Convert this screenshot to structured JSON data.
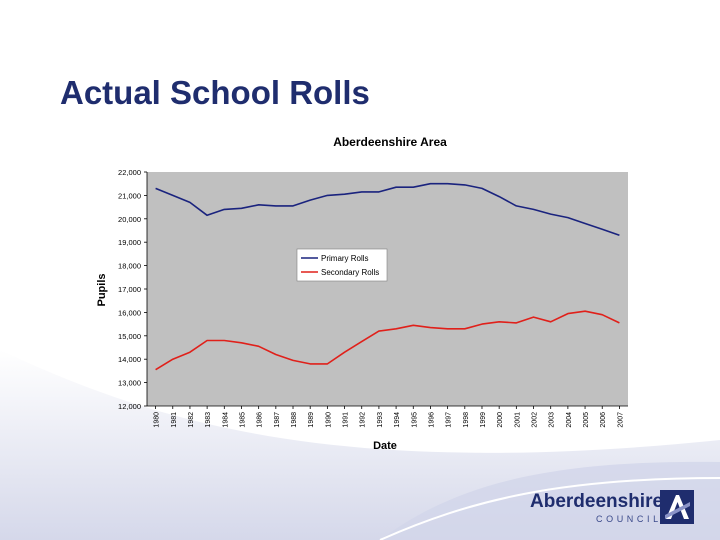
{
  "slide": {
    "title": "Actual School Rolls"
  },
  "logo": {
    "name": "Aberdeenshire",
    "subtitle": "COUNCIL"
  },
  "colors": {
    "title": "#1f2d6e",
    "plot_bg": "#c0c0c0",
    "primary": "#1a237e",
    "secondary": "#e0201a"
  },
  "chart_data": {
    "type": "line",
    "title": "Aberdeenshire Area",
    "xlabel": "Date",
    "ylabel": "Pupils",
    "ylim": [
      12000,
      22000
    ],
    "yticks": [
      12000,
      13000,
      14000,
      15000,
      16000,
      17000,
      18000,
      19000,
      20000,
      21000,
      22000
    ],
    "ytick_labels": [
      "12,000",
      "13,000",
      "14,000",
      "15,000",
      "16,000",
      "17,000",
      "18,000",
      "19,000",
      "20,000",
      "21,000",
      "22,000"
    ],
    "grid": false,
    "legend_position": "center",
    "x": [
      "1980",
      "1981",
      "1982",
      "1983",
      "1984",
      "1985",
      "1986",
      "1987",
      "1988",
      "1989",
      "1990",
      "1991",
      "1992",
      "1993",
      "1994",
      "1995",
      "1996",
      "1997",
      "1998",
      "1999",
      "2000",
      "2001",
      "2002",
      "2003",
      "2004",
      "2005",
      "2006",
      "2007"
    ],
    "series": [
      {
        "name": "Primary Rolls",
        "color": "#1a237e",
        "values": [
          21300,
          21000,
          20700,
          20150,
          20400,
          20450,
          20600,
          20550,
          20550,
          20800,
          21000,
          21050,
          21150,
          21150,
          21350,
          21350,
          21500,
          21500,
          21450,
          21300,
          20950,
          20550,
          20400,
          20200,
          20050,
          19800,
          19550,
          19300
        ]
      },
      {
        "name": "Secondary Rolls",
        "color": "#e0201a",
        "values": [
          13550,
          14000,
          14300,
          14800,
          14800,
          14700,
          14550,
          14200,
          13950,
          13800,
          13800,
          14300,
          14750,
          15200,
          15300,
          15450,
          15350,
          15300,
          15300,
          15500,
          15600,
          15550,
          15800,
          15600,
          15950,
          16050,
          15900,
          15550
        ]
      }
    ]
  }
}
